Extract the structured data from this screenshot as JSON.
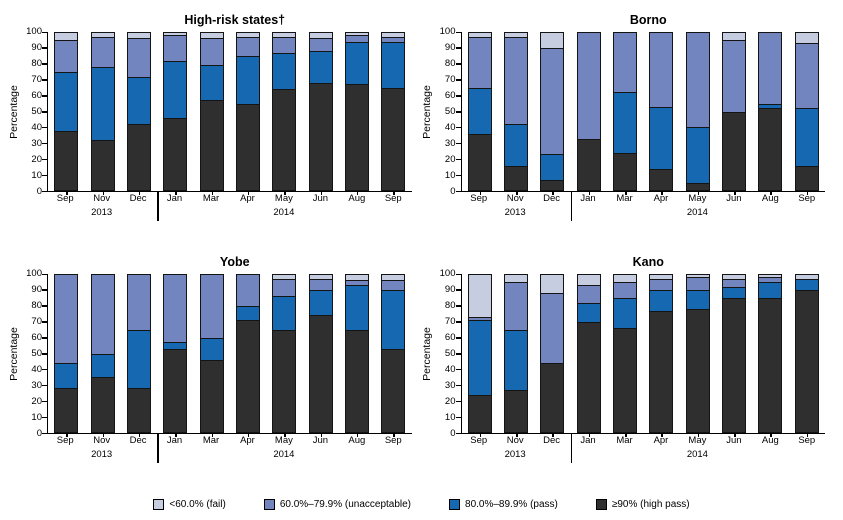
{
  "legend": {
    "items": [
      {
        "key": "fail",
        "label": "<60.0% (fail)",
        "color": "#c7cde1"
      },
      {
        "key": "unacceptable",
        "label": "60.0%–79.9% (unacceptable)",
        "color": "#7285bf"
      },
      {
        "key": "pass",
        "label": "80.0%–89.9% (pass)",
        "color": "#1668b1"
      },
      {
        "key": "highpass",
        "label": "≥90% (high pass)",
        "color": "#2f2f2f"
      }
    ]
  },
  "chart_data": [
    {
      "type": "bar",
      "stacked": true,
      "title": "High-risk states†",
      "ylabel": "Percentage",
      "ylim": [
        0,
        100
      ],
      "ytick_step": 10,
      "categories": [
        "Sep",
        "Nov",
        "Dec",
        "Jan",
        "Mar",
        "Apr",
        "May",
        "Jun",
        "Aug",
        "Sep"
      ],
      "year_labels": [
        {
          "text": "2013",
          "index": 1
        },
        {
          "text": "2014",
          "index": 6
        }
      ],
      "divider_after_index": 2,
      "series": [
        {
          "key": "highpass",
          "name": "≥90% (high pass)",
          "values": [
            38,
            32,
            42,
            46,
            57,
            55,
            64,
            68,
            67,
            65
          ]
        },
        {
          "key": "pass",
          "name": "80.0%–89.9% (pass)",
          "values": [
            37,
            46,
            30,
            36,
            22,
            30,
            23,
            20,
            27,
            29
          ]
        },
        {
          "key": "unacceptable",
          "name": "60.0%–79.9% (unacceptable)",
          "values": [
            20,
            19,
            24,
            16,
            17,
            12,
            10,
            8,
            4,
            3
          ]
        },
        {
          "key": "fail",
          "name": "<60.0% (fail)",
          "values": [
            5,
            3,
            4,
            2,
            4,
            3,
            3,
            4,
            2,
            3
          ]
        }
      ]
    },
    {
      "type": "bar",
      "stacked": true,
      "title": "Borno",
      "ylabel": "Percentage",
      "ylim": [
        0,
        100
      ],
      "ytick_step": 10,
      "categories": [
        "Sep",
        "Nov",
        "Dec",
        "Jan",
        "Mar",
        "Apr",
        "May",
        "Jun",
        "Aug",
        "Sep"
      ],
      "year_labels": [
        {
          "text": "2013",
          "index": 1
        },
        {
          "text": "2014",
          "index": 6
        }
      ],
      "divider_after_index": 2,
      "series": [
        {
          "key": "highpass",
          "name": "≥90% (high pass)",
          "values": [
            36,
            16,
            7,
            33,
            24,
            14,
            5,
            50,
            52,
            16
          ]
        },
        {
          "key": "pass",
          "name": "80.0%–89.9% (pass)",
          "values": [
            29,
            26,
            16,
            0,
            38,
            39,
            35,
            0,
            3,
            36
          ]
        },
        {
          "key": "unacceptable",
          "name": "60.0%–79.9% (unacceptable)",
          "values": [
            32,
            55,
            67,
            67,
            38,
            47,
            60,
            45,
            45,
            41
          ]
        },
        {
          "key": "fail",
          "name": "<60.0% (fail)",
          "values": [
            3,
            3,
            10,
            0,
            0,
            0,
            0,
            5,
            0,
            7
          ]
        }
      ]
    },
    {
      "type": "bar",
      "stacked": true,
      "title": "Yobe",
      "ylabel": "Percentage",
      "ylim": [
        0,
        100
      ],
      "ytick_step": 10,
      "categories": [
        "Sep",
        "Nov",
        "Dec",
        "Jan",
        "Mar",
        "Apr",
        "May",
        "Jun",
        "Aug",
        "Sep"
      ],
      "year_labels": [
        {
          "text": "2013",
          "index": 1
        },
        {
          "text": "2014",
          "index": 6
        }
      ],
      "divider_after_index": 2,
      "series": [
        {
          "key": "highpass",
          "name": "≥90% (high pass)",
          "values": [
            28,
            35,
            28,
            53,
            46,
            71,
            65,
            74,
            65,
            53
          ]
        },
        {
          "key": "pass",
          "name": "80.0%–89.9% (pass)",
          "values": [
            16,
            15,
            37,
            4,
            14,
            9,
            21,
            16,
            28,
            37
          ]
        },
        {
          "key": "unacceptable",
          "name": "60.0%–79.9% (unacceptable)",
          "values": [
            56,
            50,
            35,
            43,
            40,
            20,
            11,
            7,
            3,
            6
          ]
        },
        {
          "key": "fail",
          "name": "<60.0% (fail)",
          "values": [
            0,
            0,
            0,
            0,
            0,
            0,
            3,
            3,
            4,
            4
          ]
        }
      ]
    },
    {
      "type": "bar",
      "stacked": true,
      "title": "Kano",
      "ylabel": "Percentage",
      "ylim": [
        0,
        100
      ],
      "ytick_step": 10,
      "categories": [
        "Sep",
        "Nov",
        "Dec",
        "Jan",
        "Mar",
        "Apr",
        "May",
        "Jun",
        "Aug",
        "Sep"
      ],
      "year_labels": [
        {
          "text": "2013",
          "index": 1
        },
        {
          "text": "2014",
          "index": 6
        }
      ],
      "divider_after_index": 2,
      "series": [
        {
          "key": "highpass",
          "name": "≥90% (high pass)",
          "values": [
            24,
            27,
            44,
            70,
            66,
            77,
            78,
            85,
            85,
            90
          ]
        },
        {
          "key": "pass",
          "name": "80.0%–89.9% (pass)",
          "values": [
            47,
            38,
            0,
            12,
            19,
            13,
            12,
            7,
            10,
            7
          ]
        },
        {
          "key": "unacceptable",
          "name": "60.0%–79.9% (unacceptable)",
          "values": [
            2,
            30,
            44,
            11,
            10,
            7,
            8,
            5,
            3,
            0
          ]
        },
        {
          "key": "fail",
          "name": "<60.0% (fail)",
          "values": [
            27,
            5,
            12,
            7,
            5,
            3,
            2,
            3,
            2,
            3
          ]
        }
      ]
    }
  ]
}
